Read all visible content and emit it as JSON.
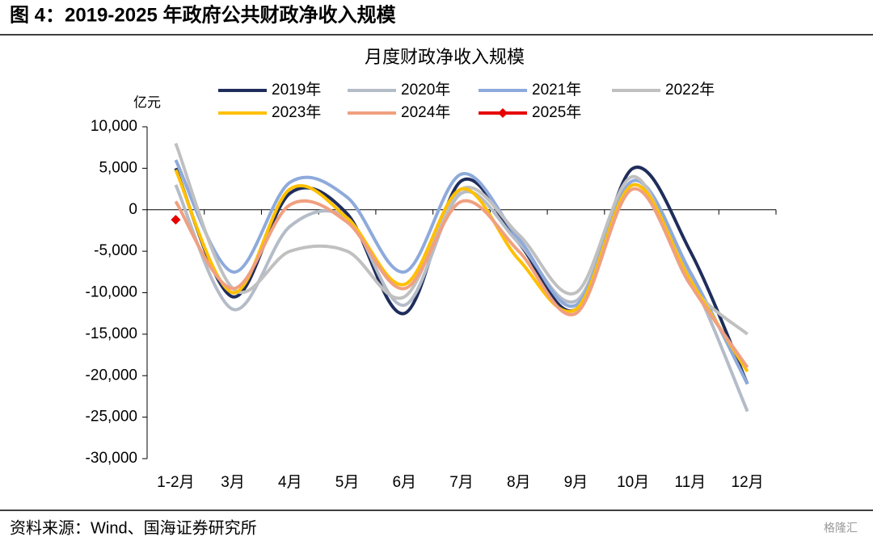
{
  "header": {
    "title": "图 4：2019-2025 年政府公共财政净收入规模"
  },
  "chart_data": {
    "type": "line",
    "title": "月度财政净收入规模",
    "y_label": "亿元",
    "categories": [
      "1-2月",
      "3月",
      "4月",
      "5月",
      "6月",
      "7月",
      "8月",
      "9月",
      "10月",
      "11月",
      "12月"
    ],
    "series": [
      {
        "name": "2019年",
        "color": "#1f2d5c",
        "values": [
          5000,
          -10500,
          2000,
          -500,
          -12500,
          3500,
          -4000,
          -12000,
          5000,
          -5000,
          -21000
        ]
      },
      {
        "name": "2020年",
        "color": "#b4bcc8",
        "values": [
          3000,
          -12000,
          -2000,
          -1000,
          -11500,
          2000,
          -4000,
          -11000,
          3000,
          -8000,
          -24300
        ]
      },
      {
        "name": "2021年",
        "color": "#8eaadb",
        "values": [
          6000,
          -7500,
          3300,
          1500,
          -7500,
          4300,
          -3500,
          -11500,
          3500,
          -7500,
          -21000
        ]
      },
      {
        "name": "2022年",
        "color": "#c0c0c0",
        "values": [
          8000,
          -9500,
          -5000,
          -5000,
          -10500,
          2500,
          -3000,
          -10000,
          4000,
          -9000,
          -15000
        ]
      },
      {
        "name": "2023年",
        "color": "#ffc000",
        "values": [
          4800,
          -10000,
          2500,
          -1000,
          -9000,
          2500,
          -6000,
          -12000,
          3000,
          -8500,
          -19500
        ]
      },
      {
        "name": "2024年",
        "color": "#f0a080",
        "values": [
          1000,
          -9500,
          600,
          -1500,
          -9500,
          1000,
          -5000,
          -12500,
          2500,
          -9000,
          -19000
        ]
      },
      {
        "name": "2025年",
        "color": "#e60000",
        "marker": "diamond",
        "values": [
          -1200,
          null,
          null,
          null,
          null,
          null,
          null,
          null,
          null,
          null,
          null
        ]
      }
    ],
    "ylim": [
      -30000,
      10000
    ],
    "yticks": [
      {
        "value": -30000,
        "label": "-30,000"
      },
      {
        "value": -25000,
        "label": "-25,000"
      },
      {
        "value": -20000,
        "label": "-20,000"
      },
      {
        "value": -15000,
        "label": "-15,000"
      },
      {
        "value": -10000,
        "label": "-10,000"
      },
      {
        "value": -5000,
        "label": "-5,000"
      },
      0,
      {
        "value": 5000,
        "label": "5,000"
      },
      {
        "value": 10000,
        "label": "10,000"
      }
    ]
  },
  "footer": {
    "source": "资料来源：Wind、国海证券研究所",
    "watermark": "格隆汇"
  }
}
